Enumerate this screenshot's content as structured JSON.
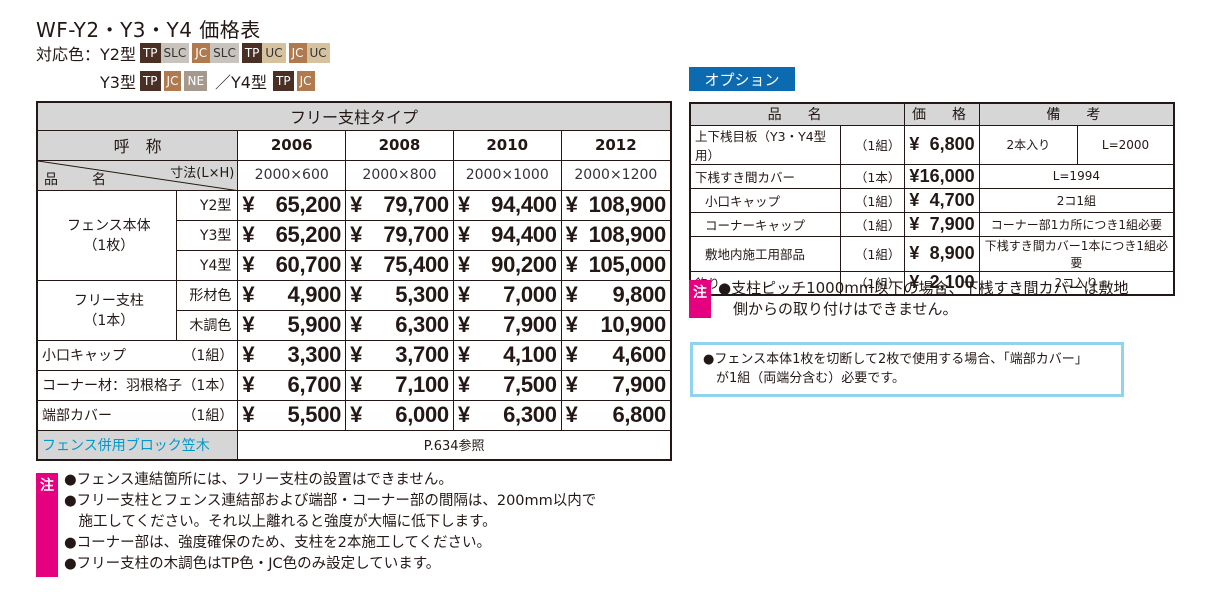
{
  "title": "WF-Y2・Y3・Y4 価格表",
  "colors": {
    "row1_label": "対応色：Y2型",
    "row1_chips": [
      {
        "a": "TP",
        "b": "SLC",
        "ca": "#4a2f24",
        "cb": "#c8c4bd"
      },
      {
        "a": "JC",
        "b": "SLC",
        "ca": "#b07a4e",
        "cb": "#c8c4bd"
      },
      {
        "a": "TP",
        "b": "UC",
        "ca": "#4a2f24",
        "cb": "#d7c2a0"
      },
      {
        "a": "JC",
        "b": "UC",
        "ca": "#b07a4e",
        "cb": "#d7c2a0"
      }
    ],
    "row2_label": "Y3型",
    "row2_chips": [
      {
        "a": "TP",
        "ca": "#4a2f24"
      },
      {
        "a": "JC",
        "ca": "#b07a4e"
      },
      {
        "a": "NE",
        "ca": "#a5998d"
      }
    ],
    "row2_sep": "／Y4型",
    "row3_chips": [
      {
        "a": "TP",
        "ca": "#4a2f24"
      },
      {
        "a": "JC",
        "ca": "#b07a4e"
      }
    ]
  },
  "main": {
    "type_header": "フリー支柱タイプ",
    "name_header": "呼　称",
    "size_header": "寸法(L×H)",
    "item_header": "品　名",
    "years": [
      "2006",
      "2008",
      "2010",
      "2012"
    ],
    "sizes": [
      "2000×600",
      "2000×800",
      "2000×1000",
      "2000×1200"
    ],
    "yen": "¥",
    "fence_label": "フェンス本体\n（1枚）",
    "fence_label_a": "フェンス本体",
    "fence_label_b": "（1枚）",
    "post_label_a": "フリー支柱",
    "post_label_b": "（1本）",
    "rows": [
      {
        "sub": "Y2型",
        "prices": [
          "65,200",
          "79,700",
          "94,400",
          "108,900"
        ]
      },
      {
        "sub": "Y3型",
        "prices": [
          "65,200",
          "79,700",
          "94,400",
          "108,900"
        ]
      },
      {
        "sub": "Y4型",
        "prices": [
          "60,700",
          "75,400",
          "90,200",
          "105,000"
        ]
      },
      {
        "sub": "形材色",
        "prices": [
          "4,900",
          "5,300",
          "7,000",
          "9,800"
        ]
      },
      {
        "sub": "木調色",
        "prices": [
          "5,900",
          "6,300",
          "7,900",
          "10,900"
        ]
      },
      {
        "name": "小口キャップ",
        "qty": "（1組）",
        "prices": [
          "3,300",
          "3,700",
          "4,100",
          "4,600"
        ]
      },
      {
        "name": "コーナー材：羽根格子",
        "qty": "（1本）",
        "prices": [
          "6,700",
          "7,100",
          "7,500",
          "7,900"
        ]
      },
      {
        "name": "端部カバー",
        "qty": "（1組）",
        "prices": [
          "5,500",
          "6,000",
          "6,300",
          "6,800"
        ]
      }
    ],
    "block_label": "フェンス併用ブロック笠木",
    "block_ref": "P.634参照"
  },
  "notes": {
    "tag": "注",
    "lines": [
      "●フェンス連結箇所には、フリー支柱の設置はできません。",
      "●フリー支柱とフェンス連結部および端部・コーナー部の間隔は、200mm以内で",
      "　施工してください。それ以上離れると強度が大幅に低下します。",
      "●コーナー部は、強度確保のため、支柱を2本施工してください。",
      "●フリー支柱の木調色はTP色・JC色のみ設定しています。"
    ]
  },
  "option": {
    "badge": "オプション",
    "headers": [
      "品　名",
      "価　格",
      "備　考"
    ],
    "rows": [
      {
        "name": "上下桟目板（Y3・Y4型用）",
        "qty": "（1組）",
        "price": "6,800",
        "r1": "2本入り",
        "r2": "L=2000",
        "indent": false
      },
      {
        "name": "下桟すき間カバー",
        "qty": "（1本）",
        "price": "16,000",
        "r": "L=1994",
        "indent": false
      },
      {
        "name": "小口キャップ",
        "qty": "（1組）",
        "price": "4,700",
        "r": "2コ1組",
        "indent": true
      },
      {
        "name": "コーナーキャップ",
        "qty": "（1組）",
        "price": "7,900",
        "r": "コーナー部1カ所につき1組必要",
        "indent": true
      },
      {
        "name": "敷地内施工用部品",
        "qty": "（1組）",
        "price": "8,900",
        "r": "下桟すき間カバー1本につき1組必要",
        "indent": true
      },
      {
        "name": "飾り",
        "qty": "（1組）",
        "price": "2,100",
        "r": "2コ入り",
        "indent": false
      }
    ],
    "note_tag": "注",
    "note_lines": [
      "●支柱ピッチ1000mm以下の場合、下桟すき間カバーは敷地",
      "　側からの取り付けはできません。"
    ],
    "info_lines": [
      "●フェンス本体1枚を切断して2枚で使用する場合、「端部カバー」",
      "　が1組（両端分含む）必要です。"
    ]
  }
}
